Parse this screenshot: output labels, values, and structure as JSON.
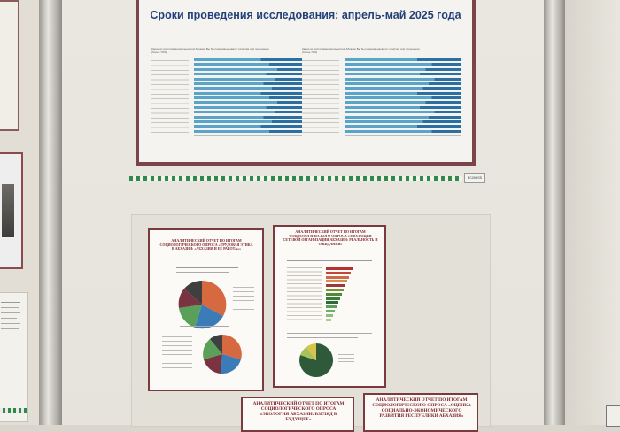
{
  "top_poster": {
    "heading": "Сроки проведения исследования: апрель-май 2025 года",
    "chart_left_title": "Какую из достопримечательностей Абхазии Вы бы порекомендовали туристам для посещения (более 70%)",
    "chart_right_title": "Какую из достопримечательностей Абхазии Вы бы порекомендовали туристам для посещения (более 70%)"
  },
  "stripe_badge": "ECOMISS",
  "reports": {
    "report1_title": "АНАЛИТИЧЕСКИЙ ОТЧЕТ ПО ИТОГАМ СОЦИОЛОГИЧЕСКОГО ОПРОСА «ТРУДОВАЯ ЭТИКА В АБХАЗИИ: «АБХАЗИЯ И ЕЁ РАБОТА»»",
    "report2_title": "АНАЛИТИЧЕСКИЙ ОТЧЕТ ПО ИТОГАМ СОЦИОЛОГИЧЕСКОГО ОПРОСА «ЭВОЛЮЦИЯ СЕТЕВОЙ ОРГАНИЗАЦИИ АБХАЗИИ: РЕАЛЬНОСТЬ И ОЖИДАНИЯ»",
    "report3_title": "АНАЛИТИЧЕСКИЙ ОТЧЕТ ПО ИТОГАМ СОЦИОЛОГИЧЕСКОГО ОПРОСА «ЭКОЛОГИЯ АБХАЗИИ: ВЗГЛЯД В БУДУЩЕЕ»",
    "report4_title": "АНАЛИТИЧЕСКИЙ ОТЧЕТ ПО ИТОГАМ СОЦИОЛОГИЧЕСКОГО ОПРОСА «ОЦЕНКА СОЦИАЛЬНО-ЭКОНОМИЧЕСКОГО РАЗВИТИЯ РЕСПУБЛИКИ АБХАЗИЯ»"
  },
  "colors": {
    "frame": "#7a4548",
    "heading": "#24407a",
    "bar_light": "#5aa3c9",
    "bar_dark": "#2c6fa3",
    "stripe_green": "#2f8a4a"
  }
}
